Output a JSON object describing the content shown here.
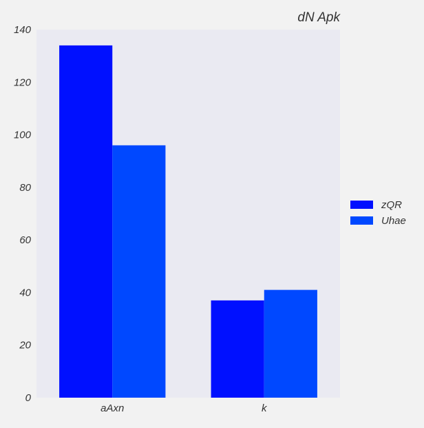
{
  "chart_data": {
    "type": "bar",
    "title": "dN Apk",
    "xlabel": "",
    "ylabel": "",
    "categories": [
      "aAxn",
      "k"
    ],
    "series": [
      {
        "name": "zQR",
        "values": [
          134,
          37
        ],
        "color": "#0010ff"
      },
      {
        "name": "Uhae",
        "values": [
          96,
          41
        ],
        "color": "#0048ff"
      }
    ],
    "ylim": [
      0,
      140
    ],
    "yticks": [
      0,
      20,
      40,
      60,
      80,
      100,
      120,
      140
    ],
    "grid": false,
    "legend_position": "right",
    "plot_background": "#eaeaf2",
    "figure_background": "#f2f2f2"
  }
}
